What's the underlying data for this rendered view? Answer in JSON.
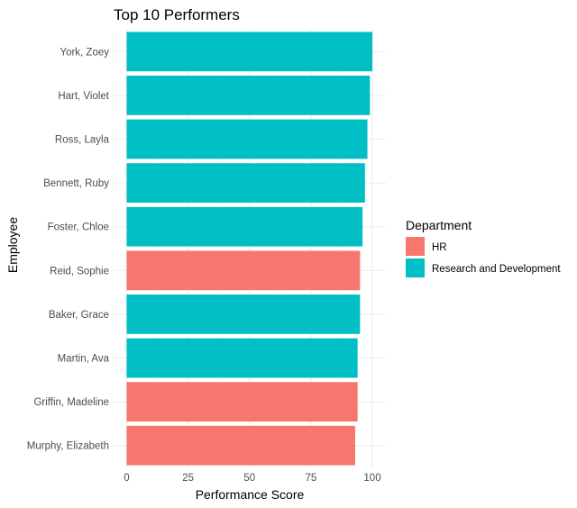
{
  "chart_data": {
    "type": "bar",
    "orientation": "horizontal",
    "title": "Top 10 Performers",
    "xlabel": "Performance Score",
    "ylabel": "Employee",
    "xlim": [
      0,
      105
    ],
    "x_ticks": [
      0,
      25,
      50,
      75,
      100
    ],
    "grid": true,
    "legend": {
      "title": "Department",
      "placement": "right",
      "entries": [
        {
          "name": "HR",
          "color": "#F8766D"
        },
        {
          "name": "Research and Development",
          "color": "#00BFC4"
        }
      ]
    },
    "categories": [
      "York, Zoey",
      "Hart, Violet",
      "Ross, Layla",
      "Bennett, Ruby",
      "Foster, Chloe",
      "Reid, Sophie",
      "Baker, Grace",
      "Martin, Ava",
      "Griffin, Madeline",
      "Murphy, Elizabeth"
    ],
    "values": [
      100,
      99,
      98,
      97,
      96,
      95,
      95,
      94,
      94,
      93
    ],
    "departments": [
      "Research and Development",
      "Research and Development",
      "Research and Development",
      "Research and Development",
      "Research and Development",
      "HR",
      "Research and Development",
      "Research and Development",
      "HR",
      "HR"
    ]
  }
}
